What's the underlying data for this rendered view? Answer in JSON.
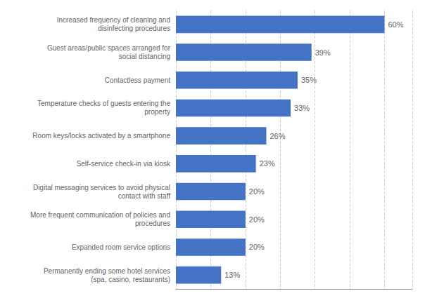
{
  "chart_data": {
    "type": "bar",
    "orientation": "horizontal",
    "categories": [
      "Permanently ending some hotel services\n(spa, casino, restaurants)",
      "Expanded room service options",
      "More frequent communication of policies and\nprocedures",
      "Digital messaging services to avoid physical\ncontact with staff",
      "Self-service check-in via kiosk",
      "Room keys/locks activated by a smartphone",
      "Temperature checks of guests entering the\nproperty",
      "Contactless payment",
      "Guest areas/public spaces arranged for\nsocial distancing",
      "Increased frequency of cleaning and\ndisinfecting procedures"
    ],
    "values": [
      13,
      20,
      20,
      20,
      23,
      26,
      33,
      35,
      39,
      60
    ],
    "value_labels": [
      "13%",
      "20%",
      "20%",
      "20%",
      "23%",
      "26%",
      "33%",
      "35%",
      "39%",
      "60%"
    ],
    "data_labels": true,
    "color": "#4472C4",
    "xlim": [
      0,
      68
    ],
    "xticks": [
      0,
      10,
      20,
      30,
      40,
      50,
      60
    ],
    "grid": true,
    "tick_labels": "y"
  }
}
